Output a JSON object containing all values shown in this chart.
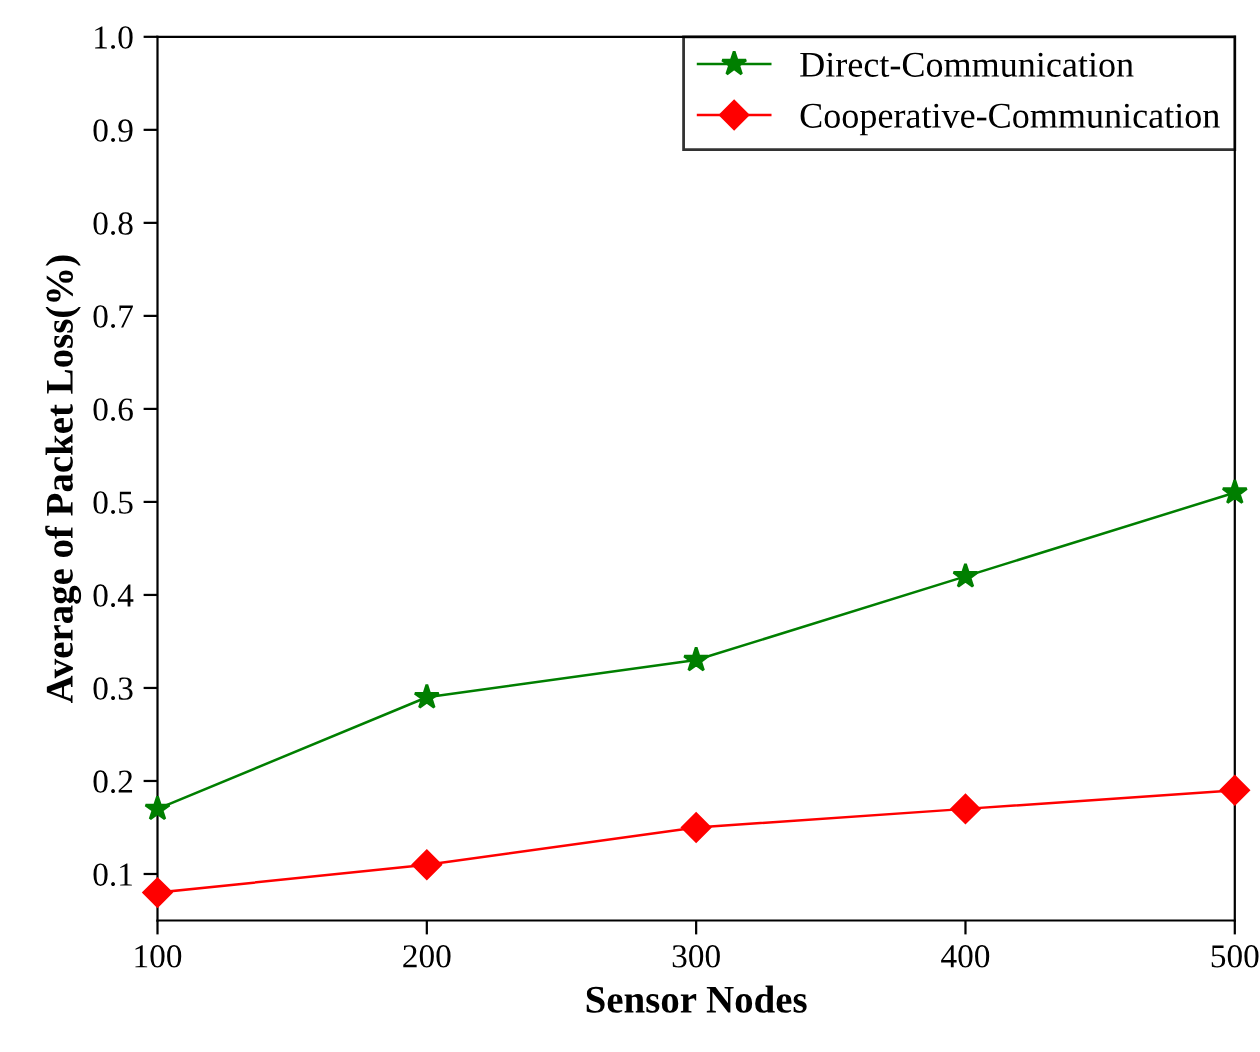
{
  "chart_data": {
    "type": "line",
    "xlabel": "Sensor Nodes",
    "ylabel": "Average of Packet Loss(%)",
    "x": [
      100,
      200,
      300,
      400,
      500
    ],
    "series": [
      {
        "name": "Direct-Communication",
        "color": "#007f00",
        "marker": "star",
        "values": [
          0.17,
          0.29,
          0.33,
          0.42,
          0.51
        ]
      },
      {
        "name": "Cooperative-Communication",
        "color": "#ff0000",
        "marker": "diamond",
        "values": [
          0.08,
          0.11,
          0.15,
          0.17,
          0.19
        ]
      }
    ],
    "xlim": [
      100,
      500
    ],
    "xticks": [
      100,
      200,
      300,
      400,
      500
    ],
    "ylim": [
      0.05,
      1.0
    ],
    "yticks": [
      0.1,
      0.2,
      0.3,
      0.4,
      0.5,
      0.6,
      0.7,
      0.8,
      0.9,
      {
        "value": 1.0,
        "label": "1.0"
      }
    ],
    "grid": false,
    "legend": "top right",
    "line_style": "solid"
  }
}
